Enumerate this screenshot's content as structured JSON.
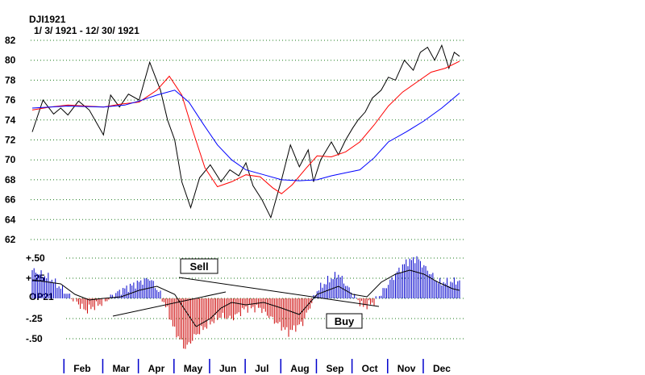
{
  "chart_data": [
    {
      "type": "line",
      "title": "DJI1921",
      "subtitle": "1/ 3/ 1921 - 12/ 30/ 1921",
      "ylim": [
        62,
        82
      ],
      "y_ticks": [
        62,
        64,
        66,
        68,
        70,
        72,
        74,
        76,
        78,
        80,
        82
      ],
      "grid": true,
      "series": [
        {
          "name": "",
          "color": "#000000",
          "x": [
            0,
            0.3,
            0.6,
            0.8,
            1.0,
            1.3,
            1.6,
            2.0,
            2.2,
            2.45,
            2.7,
            3.0,
            3.3,
            3.6,
            3.8,
            4.0,
            4.2,
            4.45,
            4.7,
            5.0,
            5.3,
            5.55,
            5.8,
            6.0,
            6.2,
            6.45,
            6.7,
            7.0,
            7.25,
            7.5,
            7.75,
            7.9,
            8.1,
            8.4,
            8.6,
            8.8,
            9.0,
            9.15,
            9.35,
            9.55,
            9.8,
            10.0,
            10.2,
            10.45,
            10.7,
            10.9,
            11.1,
            11.3,
            11.5,
            11.7,
            11.85,
            12.0
          ],
          "values": [
            72.8,
            76.0,
            74.6,
            75.2,
            74.5,
            75.9,
            75.0,
            72.5,
            76.5,
            75.3,
            76.6,
            76.0,
            79.8,
            77.0,
            74.0,
            72.0,
            67.8,
            65.2,
            68.2,
            69.5,
            67.8,
            69.0,
            68.4,
            69.7,
            67.4,
            66.0,
            64.2,
            68.0,
            71.5,
            69.3,
            71.0,
            67.8,
            70.0,
            71.8,
            70.5,
            72.0,
            73.2,
            74.0,
            74.8,
            76.2,
            77.0,
            78.3,
            78.0,
            80.0,
            79.0,
            80.8,
            81.3,
            80.0,
            81.5,
            79.2,
            80.8,
            80.4
          ]
        },
        {
          "name": "",
          "color": "#ff0000",
          "x": [
            0,
            0.5,
            1.0,
            1.5,
            2.0,
            2.5,
            3.0,
            3.5,
            3.85,
            4.2,
            4.5,
            4.85,
            5.2,
            5.6,
            6.0,
            6.4,
            6.75,
            7.0,
            7.3,
            7.7,
            8.0,
            8.4,
            8.8,
            9.2,
            9.6,
            10.0,
            10.4,
            10.8,
            11.2,
            11.6,
            12.0
          ],
          "values": [
            75.0,
            75.3,
            75.5,
            75.4,
            75.3,
            75.6,
            75.8,
            77.0,
            78.4,
            76.5,
            73.0,
            69.2,
            67.3,
            67.8,
            68.5,
            68.3,
            67.2,
            66.6,
            67.5,
            69.2,
            70.4,
            70.3,
            70.8,
            71.8,
            73.5,
            75.4,
            76.8,
            77.8,
            78.8,
            79.2,
            79.9
          ]
        },
        {
          "name": "",
          "color": "#0000ff",
          "x": [
            0,
            1.0,
            2.0,
            2.6,
            3.0,
            3.5,
            4.0,
            4.4,
            4.8,
            5.2,
            5.6,
            6.0,
            6.5,
            7.0,
            7.5,
            8.0,
            8.4,
            8.8,
            9.2,
            9.6,
            10.0,
            10.5,
            11.0,
            11.5,
            12.0
          ],
          "values": [
            75.2,
            75.4,
            75.3,
            75.5,
            75.9,
            76.5,
            77.0,
            75.8,
            73.6,
            71.5,
            70.0,
            69.0,
            68.5,
            68.0,
            67.9,
            68.0,
            68.4,
            68.7,
            69.0,
            70.2,
            71.8,
            72.8,
            73.9,
            75.2,
            76.7
          ]
        }
      ]
    },
    {
      "type": "bar",
      "ylabel": "OP21",
      "ylim": [
        -0.6,
        0.6
      ],
      "y_tick_labels": [
        "+.50",
        "+.25",
        "",
        "-.25",
        "-.50"
      ],
      "y_tick_values": [
        0.5,
        0.25,
        0,
        -0.25,
        -0.5
      ],
      "grid": true,
      "histogram": {
        "x": [
          0,
          0.5,
          1.0,
          1.5,
          2.0,
          2.3,
          2.6,
          3.0,
          3.3,
          3.6,
          3.8,
          4.0,
          4.3,
          4.6,
          5.0,
          5.3,
          5.6,
          6.0,
          6.4,
          6.8,
          7.2,
          7.6,
          8.0,
          8.3,
          8.6,
          9.0,
          9.3,
          9.6,
          9.9,
          10.2,
          10.5,
          10.8,
          11.1,
          11.4,
          11.7,
          12.0
        ],
        "values": [
          0.35,
          0.25,
          0.05,
          -0.15,
          -0.05,
          0.05,
          0.12,
          0.2,
          0.25,
          0.05,
          -0.15,
          -0.4,
          -0.62,
          -0.45,
          -0.3,
          -0.22,
          -0.25,
          -0.12,
          -0.12,
          -0.28,
          -0.42,
          -0.3,
          0.1,
          0.22,
          0.3,
          0.05,
          -0.1,
          -0.05,
          0.12,
          0.3,
          0.45,
          0.5,
          0.35,
          0.2,
          0.2,
          0.22
        ],
        "positive_color": "#0000cc",
        "negative_color": "#cc0000"
      },
      "series": [
        {
          "name": "",
          "color": "#000000",
          "x": [
            0,
            0.8,
            1.2,
            1.6,
            2.0,
            2.5,
            3.0,
            3.5,
            4.0,
            4.3,
            4.6,
            5.0,
            5.3,
            5.6,
            6.0,
            6.5,
            7.0,
            7.5,
            7.8,
            8.0,
            8.3,
            8.6,
            9.0,
            9.4,
            9.8,
            10.2,
            10.6,
            11.0,
            11.4,
            11.8,
            12.0
          ],
          "values": [
            0.23,
            0.18,
            0.05,
            -0.02,
            0.0,
            0.02,
            0.1,
            0.15,
            0.05,
            -0.15,
            -0.35,
            -0.25,
            -0.12,
            -0.05,
            -0.08,
            -0.05,
            -0.12,
            -0.2,
            -0.05,
            0.05,
            0.1,
            0.15,
            0.05,
            0.02,
            0.2,
            0.3,
            0.35,
            0.3,
            0.2,
            0.12,
            0.1
          ]
        }
      ],
      "annotations": [
        {
          "text": "Sell"
        },
        {
          "text": "Buy"
        }
      ]
    }
  ],
  "x_axis": {
    "months": [
      "Feb",
      "Mar",
      "Apr",
      "May",
      "Jun",
      "Jul",
      "Aug",
      "Sep",
      "Oct",
      "Nov",
      "Dec"
    ]
  }
}
